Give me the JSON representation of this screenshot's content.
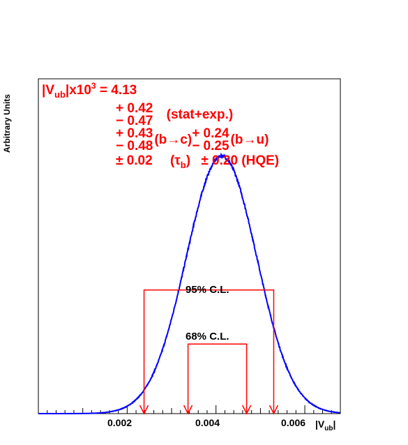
{
  "chart_data": {
    "type": "line",
    "title": "",
    "ylabel": "Arbitrary Units",
    "xlabel_main": "|V",
    "xlabel_sub": "ub",
    "xlabel_end": "|",
    "xlim": [
      0.0,
      0.0068
    ],
    "ylim": [
      0,
      1.3
    ],
    "x_ticks": [
      0.002,
      0.004,
      0.006
    ],
    "x_tick_labels": [
      "0.002",
      "0.004",
      "0.006"
    ],
    "series": [
      {
        "name": "",
        "color": "#0000ff",
        "curve": {
          "mode": 0.00413,
          "sigma_left": 0.0008,
          "sigma_right": 0.00079,
          "peak": 1.0
        }
      }
    ],
    "intervals": [
      {
        "label": "95% C.L.",
        "low": 0.00238,
        "high": 0.0053,
        "height": 0.48
      },
      {
        "label": "68% C.L.",
        "low": 0.00337,
        "high": 0.00469,
        "height": 0.27
      }
    ],
    "result": {
      "line1": {
        "prefix": "|V",
        "sub": "ub",
        "mid": "|x10",
        "sup": "3",
        "value": " = 4.13"
      },
      "stat_plus": "+ 0.42",
      "stat_minus": "− 0.47",
      "stat_label": "(stat+exp.)",
      "bc_plus": "+ 0.43",
      "bc_minus": "− 0.48",
      "bc_label": "(b→c)",
      "bu_plus": "+ 0.24",
      "bu_minus": "− 0.25",
      "bu_label": "(b→u)",
      "tau_val": "± 0.02",
      "tau_label_pre": "(τ",
      "tau_label_sub": "b",
      "tau_label_post": ")",
      "hqe": "± 0.20 (HQE)"
    }
  }
}
